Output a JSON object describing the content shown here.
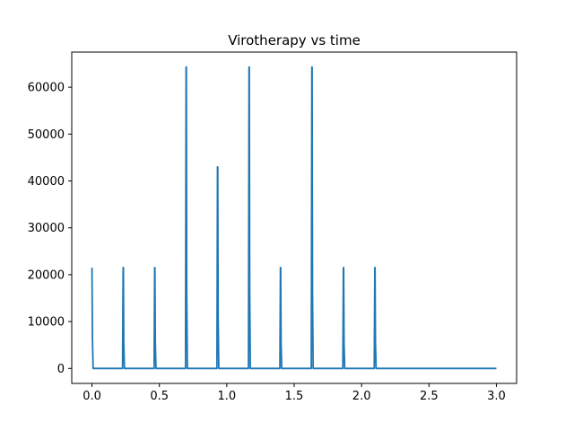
{
  "chart_data": {
    "type": "line",
    "title": "Virotherapy vs time",
    "xlabel": "",
    "ylabel": "",
    "xlim": [
      -0.15,
      3.15
    ],
    "ylim": [
      -3200,
      67500
    ],
    "x_ticks": [
      0.0,
      0.5,
      1.0,
      1.5,
      2.0,
      2.5,
      3.0
    ],
    "x_tick_labels": [
      "0.0",
      "0.5",
      "1.0",
      "1.5",
      "2.0",
      "2.5",
      "3.0"
    ],
    "y_ticks": [
      0,
      10000,
      20000,
      30000,
      40000,
      50000,
      60000
    ],
    "y_tick_labels": [
      "0",
      "10000",
      "20000",
      "30000",
      "40000",
      "50000",
      "60000"
    ],
    "grid": false,
    "series": [
      {
        "color": "#1f77b4",
        "peaks": [
          {
            "x": 0.0,
            "y": 21500
          },
          {
            "x": 0.233,
            "y": 21500
          },
          {
            "x": 0.467,
            "y": 21500
          },
          {
            "x": 0.7,
            "y": 64300
          },
          {
            "x": 0.933,
            "y": 43000
          },
          {
            "x": 1.167,
            "y": 64300
          },
          {
            "x": 1.4,
            "y": 21500
          },
          {
            "x": 1.633,
            "y": 64300
          },
          {
            "x": 1.867,
            "y": 21500
          },
          {
            "x": 2.1,
            "y": 21500
          }
        ],
        "baseline": 0,
        "x_end": 3.0
      }
    ]
  }
}
